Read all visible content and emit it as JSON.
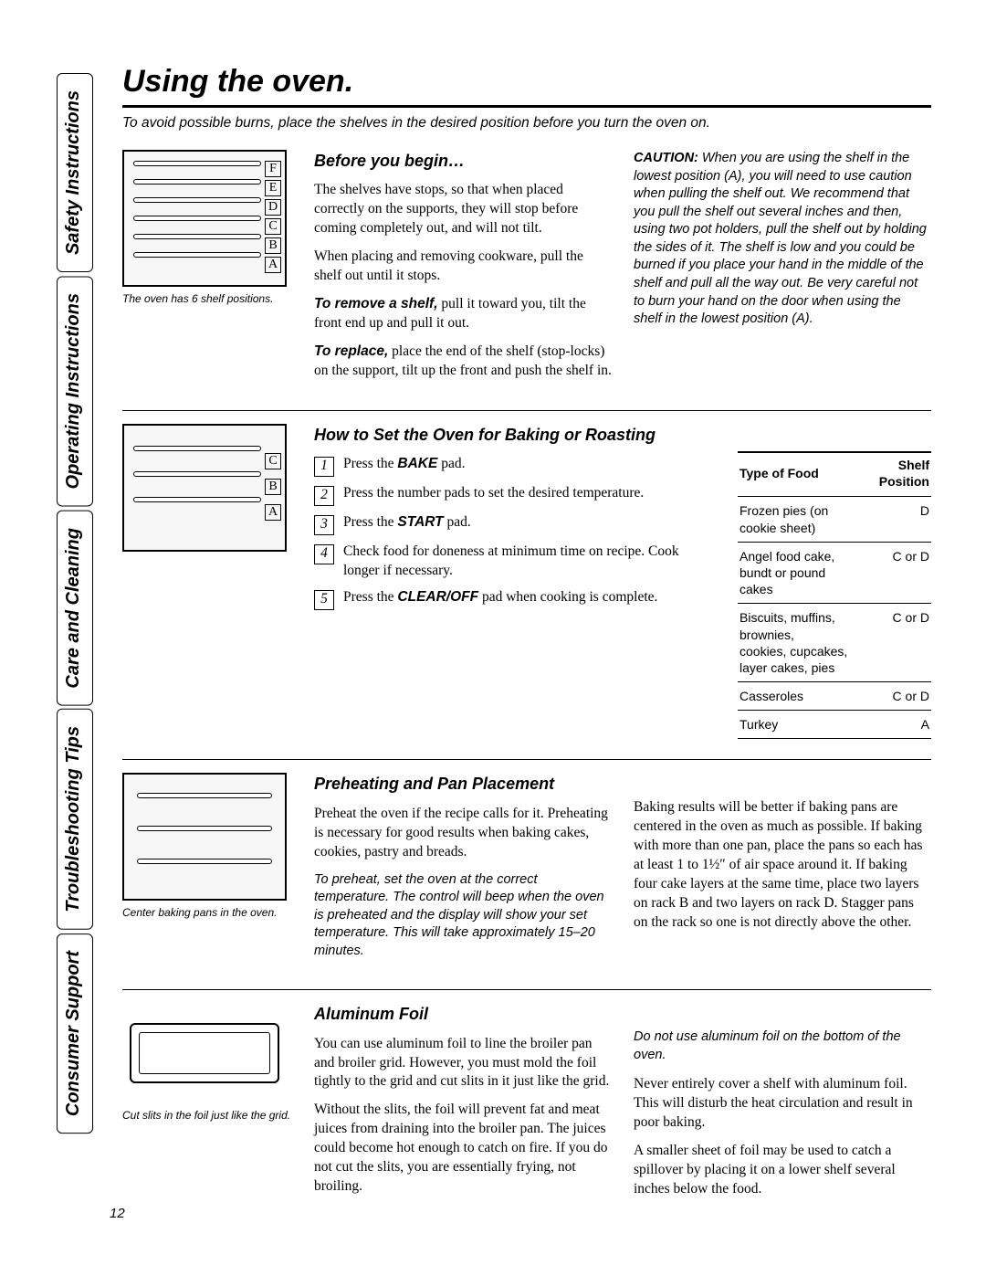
{
  "page_number": "12",
  "sidebar_tabs": [
    "Safety Instructions",
    "Operating Instructions",
    "Care and Cleaning",
    "Troubleshooting Tips",
    "Consumer Support"
  ],
  "title": "Using the oven.",
  "intro": "To avoid possible burns, place the shelves in the desired position before you turn the oven on.",
  "s1": {
    "caption": "The oven has 6 shelf positions.",
    "shelf_letters": [
      "F",
      "E",
      "D",
      "C",
      "B",
      "A"
    ],
    "heading": "Before you begin…",
    "p1": "The shelves have stops, so that when placed correctly on the supports, they will stop before coming completely out, and will not tilt.",
    "p2": "When placing and removing cookware, pull the shelf out until it stops.",
    "p3a": "To remove a shelf,",
    "p3b": " pull it toward you, tilt the front end up and pull it out.",
    "p4a": "To replace,",
    "p4b": " place the end of the shelf (stop-locks) on the support, tilt up the front and push the shelf in.",
    "caution_label": "CAUTION:",
    "caution": " When you are using the shelf in the lowest position (A), you will need to use caution when pulling the shelf out. We recommend that you pull the shelf out several inches and then, using two pot holders, pull the shelf out by holding the sides of it. The shelf is low and you could be burned if you place your hand in the middle of the shelf and pull all the way out. Be very careful not to burn your hand on the door when using the shelf in the lowest position (A)."
  },
  "s2": {
    "heading": "How to Set the Oven for Baking or Roasting",
    "shelf_letters": [
      "C",
      "B",
      "A"
    ],
    "steps": [
      {
        "n": "1",
        "pre": "Press the ",
        "bi": "BAKE",
        "post": " pad."
      },
      {
        "n": "2",
        "pre": "Press the number pads to set the desired temperature.",
        "bi": "",
        "post": ""
      },
      {
        "n": "3",
        "pre": "Press the ",
        "bi": "START",
        "post": " pad."
      },
      {
        "n": "4",
        "pre": "Check food for doneness at minimum time on recipe. Cook longer if necessary.",
        "bi": "",
        "post": ""
      },
      {
        "n": "5",
        "pre": "Press the ",
        "bi": "CLEAR/OFF",
        "post": " pad when cooking is complete."
      }
    ],
    "table": {
      "head_food": "Type of Food",
      "head_pos": "Shelf Position",
      "rows": [
        {
          "food": "Frozen pies (on cookie sheet)",
          "pos": "D"
        },
        {
          "food": "Angel food cake,\nbundt or pound cakes",
          "pos": "C or D"
        },
        {
          "food": "Biscuits, muffins, brownies,\ncookies, cupcakes,\nlayer cakes, pies",
          "pos": "C or D"
        },
        {
          "food": "Casseroles",
          "pos": "C or D"
        },
        {
          "food": "Turkey",
          "pos": "A"
        }
      ]
    }
  },
  "s3": {
    "caption": "Center baking pans in the oven.",
    "heading": "Preheating and Pan Placement",
    "p1": "Preheat the oven if the recipe calls for it. Preheating is necessary for good results when baking cakes, cookies, pastry and breads.",
    "ital": "To preheat, set the oven at the correct temperature. The control will beep when the oven is preheated and the display will show your set temperature. This will take approximately 15–20 minutes.",
    "p2": "Baking results will be better if baking pans are centered in the oven as much as possible. If baking with more than one pan, place the pans so each has at least 1 to 1½″ of air space around it. If baking four cake layers at the same time, place two layers on rack B and two layers on rack D.  Stagger pans on the rack so one is not directly above the other."
  },
  "s4": {
    "caption": "Cut slits in the foil just like the grid.",
    "heading": "Aluminum Foil",
    "p1": "You can use aluminum foil to line the broiler pan and broiler grid. However, you must mold the foil tightly to the grid and cut slits in it just like the grid.",
    "p2": "Without the slits, the foil will prevent fat and meat juices from draining into the broiler pan. The juices could become hot enough to catch on fire. If you do not cut the slits, you are essentially frying, not broiling.",
    "ital": "Do not use aluminum foil on the bottom of the oven.",
    "p3": "Never entirely cover a shelf with aluminum foil. This will disturb the heat circulation and result in poor baking.",
    "p4": "A smaller sheet of foil may be used to catch a spillover by placing it on a lower shelf several inches below the food."
  }
}
